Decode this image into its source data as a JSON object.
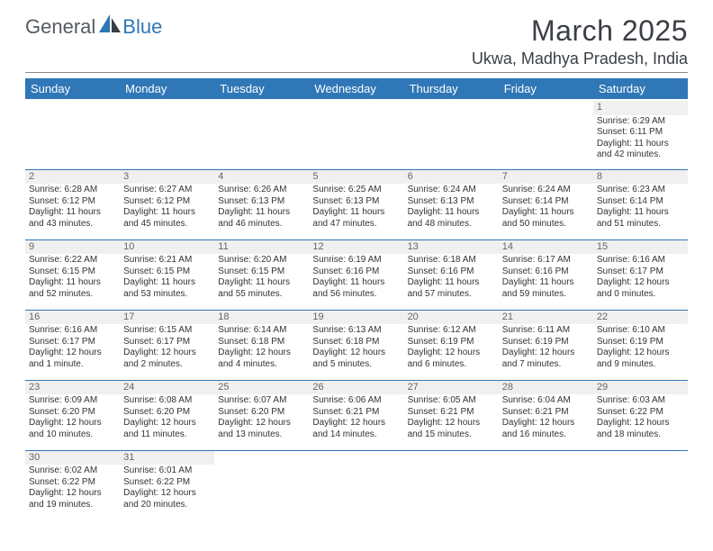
{
  "logo": {
    "part1": "General",
    "part2": "Blue"
  },
  "title": "March 2025",
  "location": "Ukwa, Madhya Pradesh, India",
  "colors": {
    "header_bg": "#2f77b6",
    "header_text": "#ffffff",
    "rule": "#2f77b6",
    "daynum_bg": "#f0f0f0",
    "text": "#333333",
    "logo_gray": "#555a60",
    "logo_blue": "#2f77b6"
  },
  "day_headers": [
    "Sunday",
    "Monday",
    "Tuesday",
    "Wednesday",
    "Thursday",
    "Friday",
    "Saturday"
  ],
  "weeks": [
    [
      null,
      null,
      null,
      null,
      null,
      null,
      {
        "n": "1",
        "sr": "6:29 AM",
        "ss": "6:11 PM",
        "dl": "11 hours and 42 minutes."
      }
    ],
    [
      {
        "n": "2",
        "sr": "6:28 AM",
        "ss": "6:12 PM",
        "dl": "11 hours and 43 minutes."
      },
      {
        "n": "3",
        "sr": "6:27 AM",
        "ss": "6:12 PM",
        "dl": "11 hours and 45 minutes."
      },
      {
        "n": "4",
        "sr": "6:26 AM",
        "ss": "6:13 PM",
        "dl": "11 hours and 46 minutes."
      },
      {
        "n": "5",
        "sr": "6:25 AM",
        "ss": "6:13 PM",
        "dl": "11 hours and 47 minutes."
      },
      {
        "n": "6",
        "sr": "6:24 AM",
        "ss": "6:13 PM",
        "dl": "11 hours and 48 minutes."
      },
      {
        "n": "7",
        "sr": "6:24 AM",
        "ss": "6:14 PM",
        "dl": "11 hours and 50 minutes."
      },
      {
        "n": "8",
        "sr": "6:23 AM",
        "ss": "6:14 PM",
        "dl": "11 hours and 51 minutes."
      }
    ],
    [
      {
        "n": "9",
        "sr": "6:22 AM",
        "ss": "6:15 PM",
        "dl": "11 hours and 52 minutes."
      },
      {
        "n": "10",
        "sr": "6:21 AM",
        "ss": "6:15 PM",
        "dl": "11 hours and 53 minutes."
      },
      {
        "n": "11",
        "sr": "6:20 AM",
        "ss": "6:15 PM",
        "dl": "11 hours and 55 minutes."
      },
      {
        "n": "12",
        "sr": "6:19 AM",
        "ss": "6:16 PM",
        "dl": "11 hours and 56 minutes."
      },
      {
        "n": "13",
        "sr": "6:18 AM",
        "ss": "6:16 PM",
        "dl": "11 hours and 57 minutes."
      },
      {
        "n": "14",
        "sr": "6:17 AM",
        "ss": "6:16 PM",
        "dl": "11 hours and 59 minutes."
      },
      {
        "n": "15",
        "sr": "6:16 AM",
        "ss": "6:17 PM",
        "dl": "12 hours and 0 minutes."
      }
    ],
    [
      {
        "n": "16",
        "sr": "6:16 AM",
        "ss": "6:17 PM",
        "dl": "12 hours and 1 minute."
      },
      {
        "n": "17",
        "sr": "6:15 AM",
        "ss": "6:17 PM",
        "dl": "12 hours and 2 minutes."
      },
      {
        "n": "18",
        "sr": "6:14 AM",
        "ss": "6:18 PM",
        "dl": "12 hours and 4 minutes."
      },
      {
        "n": "19",
        "sr": "6:13 AM",
        "ss": "6:18 PM",
        "dl": "12 hours and 5 minutes."
      },
      {
        "n": "20",
        "sr": "6:12 AM",
        "ss": "6:19 PM",
        "dl": "12 hours and 6 minutes."
      },
      {
        "n": "21",
        "sr": "6:11 AM",
        "ss": "6:19 PM",
        "dl": "12 hours and 7 minutes."
      },
      {
        "n": "22",
        "sr": "6:10 AM",
        "ss": "6:19 PM",
        "dl": "12 hours and 9 minutes."
      }
    ],
    [
      {
        "n": "23",
        "sr": "6:09 AM",
        "ss": "6:20 PM",
        "dl": "12 hours and 10 minutes."
      },
      {
        "n": "24",
        "sr": "6:08 AM",
        "ss": "6:20 PM",
        "dl": "12 hours and 11 minutes."
      },
      {
        "n": "25",
        "sr": "6:07 AM",
        "ss": "6:20 PM",
        "dl": "12 hours and 13 minutes."
      },
      {
        "n": "26",
        "sr": "6:06 AM",
        "ss": "6:21 PM",
        "dl": "12 hours and 14 minutes."
      },
      {
        "n": "27",
        "sr": "6:05 AM",
        "ss": "6:21 PM",
        "dl": "12 hours and 15 minutes."
      },
      {
        "n": "28",
        "sr": "6:04 AM",
        "ss": "6:21 PM",
        "dl": "12 hours and 16 minutes."
      },
      {
        "n": "29",
        "sr": "6:03 AM",
        "ss": "6:22 PM",
        "dl": "12 hours and 18 minutes."
      }
    ],
    [
      {
        "n": "30",
        "sr": "6:02 AM",
        "ss": "6:22 PM",
        "dl": "12 hours and 19 minutes."
      },
      {
        "n": "31",
        "sr": "6:01 AM",
        "ss": "6:22 PM",
        "dl": "12 hours and 20 minutes."
      },
      null,
      null,
      null,
      null,
      null
    ]
  ],
  "labels": {
    "sunrise": "Sunrise: ",
    "sunset": "Sunset: ",
    "daylight": "Daylight: "
  }
}
